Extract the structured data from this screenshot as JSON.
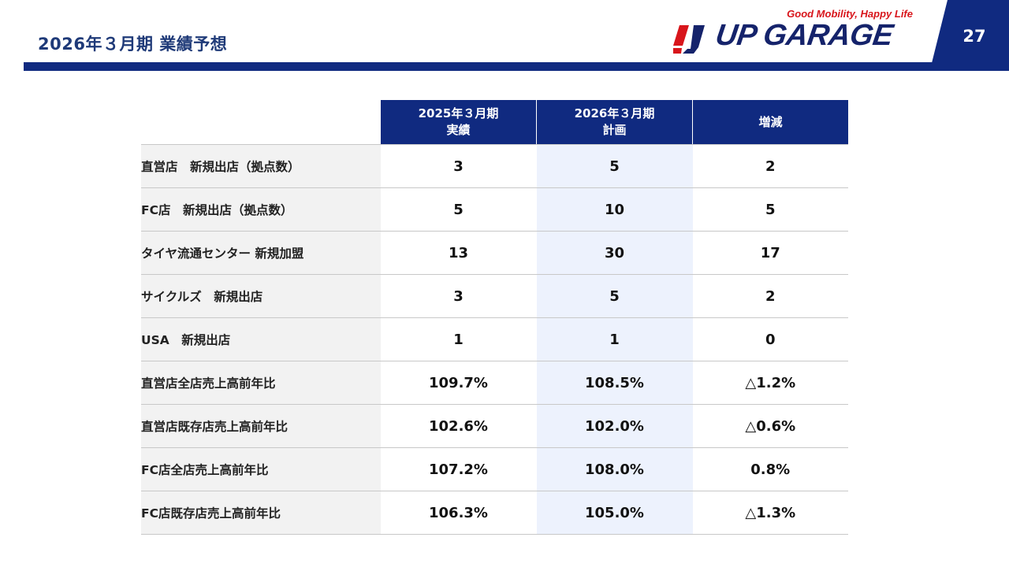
{
  "header": {
    "title": "2026年３月期 業績予想",
    "page_number": "27"
  },
  "logo": {
    "tagline": "Good Mobility, Happy Life",
    "wordmark": "UP GARAGE"
  },
  "table": {
    "columns": [
      {
        "line1": "2025年３月期",
        "line2": "実績"
      },
      {
        "line1": "2026年３月期",
        "line2": "計画"
      },
      {
        "line1": "増減",
        "line2": ""
      }
    ],
    "rows": [
      {
        "label": "直営店　新規出店（拠点数）",
        "actual": "3",
        "plan": "5",
        "change": "2"
      },
      {
        "label": "FC店　新規出店（拠点数）",
        "actual": "5",
        "plan": "10",
        "change": "5"
      },
      {
        "label": "タイヤ流通センター 新規加盟",
        "actual": "13",
        "plan": "30",
        "change": "17"
      },
      {
        "label": "サイクルズ　新規出店",
        "actual": "3",
        "plan": "5",
        "change": "2"
      },
      {
        "label": "USA　新規出店",
        "actual": "1",
        "plan": "1",
        "change": "0"
      },
      {
        "label": "直営店全店売上高前年比",
        "actual": "109.7%",
        "plan": "108.5%",
        "change": "△1.2%"
      },
      {
        "label": "直営店既存店売上高前年比",
        "actual": "102.6%",
        "plan": "102.0%",
        "change": "△0.6%"
      },
      {
        "label": "FC店全店売上高前年比",
        "actual": "107.2%",
        "plan": "108.0%",
        "change": "0.8%"
      },
      {
        "label": "FC店既存店売上高前年比",
        "actual": "106.3%",
        "plan": "105.0%",
        "change": "△1.3%"
      }
    ]
  },
  "colors": {
    "brand_navy": "#102a80",
    "brand_red": "#d8151b",
    "plan_column_bg": "#edf2fd",
    "label_column_bg": "#f2f2f2"
  }
}
